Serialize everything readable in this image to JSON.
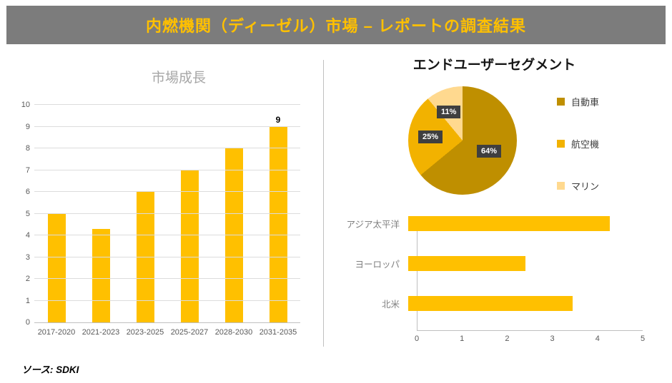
{
  "header": {
    "title": "内燃機関（ディーゼル）市場 – レポートの調査結果",
    "bg_color": "#7c7c7c",
    "text_color": "#FFC000"
  },
  "source_note": "ソース: SDKI",
  "chart_data": [
    {
      "type": "bar",
      "title": "市場成長",
      "categories": [
        "2017-2020",
        "2021-2023",
        "2023-2025",
        "2025-2027",
        "2028-2030",
        "2031-2035"
      ],
      "values": [
        5,
        4.3,
        6,
        7,
        8,
        9
      ],
      "data_labels": [
        null,
        null,
        null,
        null,
        null,
        "9"
      ],
      "ylim": [
        0,
        10
      ],
      "yticks": [
        0,
        1,
        2,
        3,
        4,
        5,
        6,
        7,
        8,
        9,
        10
      ],
      "bar_color": "#FFC000",
      "grid": true,
      "legend_position": "none"
    },
    {
      "type": "pie",
      "title": "エンドユーザーセグメント",
      "slices": [
        {
          "label": "自動車",
          "value": 64,
          "pct": "64%",
          "color": "#BF8F00"
        },
        {
          "label": "航空機",
          "value": 25,
          "pct": "25%",
          "color": "#F2B200"
        },
        {
          "label": "マリン",
          "value": 11,
          "pct": "11%",
          "color": "#FFD98F"
        }
      ],
      "start_angle_deg": 0,
      "label_box_color": "#3f3f3f",
      "legend_position": "right"
    },
    {
      "type": "bar-horizontal",
      "categories": [
        "アジア太平洋",
        "ヨーロッパ",
        "北米"
      ],
      "values": [
        4.3,
        2.5,
        3.5
      ],
      "xlim": [
        0,
        5
      ],
      "xticks": [
        0,
        1,
        2,
        3,
        4,
        5
      ],
      "bar_color": "#FFC000",
      "legend_position": "none"
    }
  ]
}
